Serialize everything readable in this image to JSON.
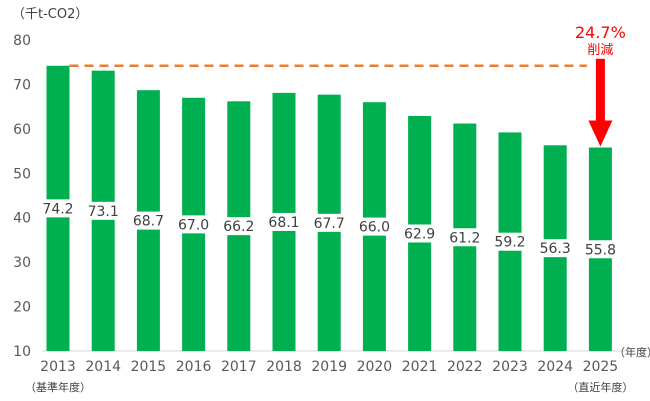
{
  "chart_data": {
    "type": "bar",
    "unit_label": "（千t-CO2）",
    "x_unit_label": "（年度）",
    "categories": [
      "2013",
      "2014",
      "2015",
      "2016",
      "2017",
      "2018",
      "2019",
      "2020",
      "2021",
      "2022",
      "2023",
      "2024",
      "2025"
    ],
    "category_notes": [
      {
        "category": "2013",
        "note": "（基準年度）"
      },
      {
        "category": "2025",
        "note": "（直近年度）"
      }
    ],
    "values": [
      74.2,
      73.1,
      68.7,
      67.0,
      66.2,
      68.1,
      67.7,
      66.0,
      62.9,
      61.2,
      59.2,
      56.3,
      55.8
    ],
    "value_labels": [
      "74.2",
      "73.1",
      "68.7",
      "67.0",
      "66.2",
      "68.1",
      "67.7",
      "66.0",
      "62.9",
      "61.2",
      "59.2",
      "56.3",
      "55.8"
    ],
    "ylim": [
      10,
      80
    ],
    "yticks": [
      10,
      20,
      30,
      40,
      50,
      60,
      70,
      80
    ],
    "grid": false,
    "bar_color": "#00b050",
    "reference_line": {
      "value": 74.2,
      "style": "dashed",
      "color": "#ed7d31"
    },
    "annotation": {
      "text_top": "24.7%",
      "text_bottom": "削減",
      "color": "#ff0000"
    }
  }
}
